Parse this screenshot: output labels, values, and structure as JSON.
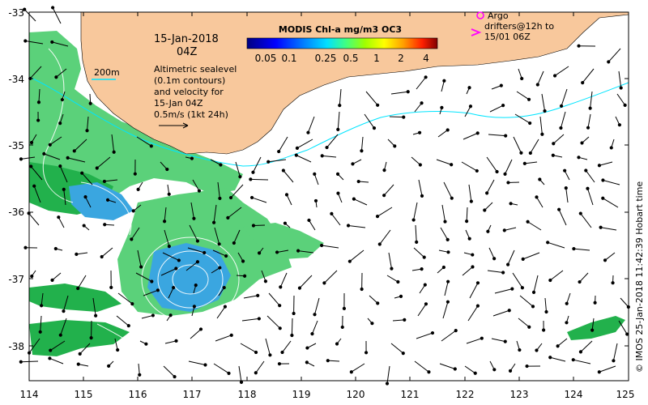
{
  "map": {
    "x_ticks": [
      "114",
      "115",
      "116",
      "117",
      "118",
      "119",
      "120",
      "121",
      "122",
      "123",
      "124",
      "125"
    ],
    "y_ticks": [
      "-33",
      "-34",
      "-35",
      "-36",
      "-37",
      "-38"
    ],
    "colors": {
      "land": "#f8c89c",
      "ocean": "#ffffff",
      "chl_light": "#5bd17a",
      "chl_mid": "#22b14c",
      "chl_blue": "#3aa6e0",
      "isobath": "#00e5ff",
      "argo": "#ff00ff"
    }
  },
  "title_block": {
    "date": "15-Jan-2018",
    "time": "04Z"
  },
  "colorbar": {
    "title": "MODIS Chl-a mg/m3 OC3",
    "labels": [
      "0.05",
      "0.1",
      "0.25",
      "0.5",
      "1",
      "2",
      "4"
    ]
  },
  "legend": {
    "isobath_label": "200m",
    "description": [
      "Altimetric sealevel",
      "(0.1m contours)",
      "and velocity for",
      "15-Jan 04Z"
    ],
    "scale_label": "0.5m/s (1kt 24h)"
  },
  "argo": {
    "line1": "Argo",
    "line2": "drifters@12h to",
    "line3": "15/01 06Z"
  },
  "credit": "© IMOS 25-Jan-2018 11:42:39 Hobart time"
}
